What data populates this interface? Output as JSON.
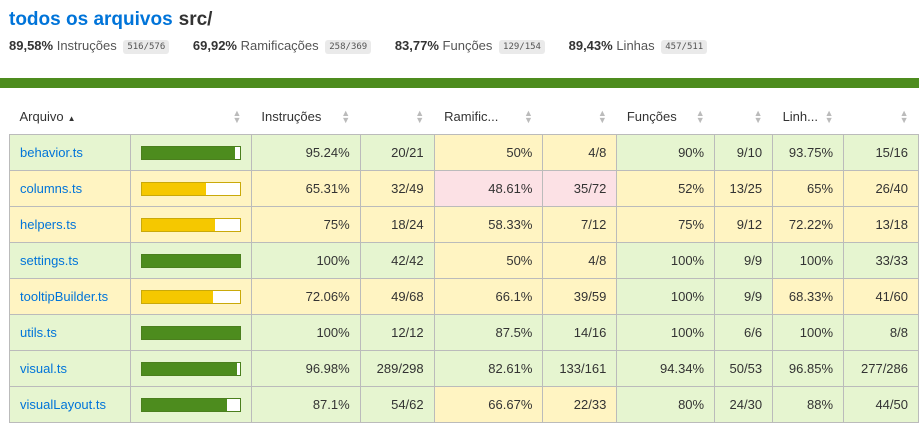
{
  "header": {
    "root_link": "todos os arquivos",
    "dir": "src/"
  },
  "summary": [
    {
      "pct": "89,58%",
      "label": "Instruções",
      "frac": "516/576"
    },
    {
      "pct": "69,92%",
      "label": "Ramificações",
      "frac": "258/369"
    },
    {
      "pct": "83,77%",
      "label": "Funções",
      "frac": "129/154"
    },
    {
      "pct": "89,43%",
      "label": "Linhas",
      "frac": "457/511"
    }
  ],
  "colors": {
    "high": "#e6f5d0",
    "medium": "#fff4c2",
    "low": "#fce1e5",
    "bar_high": "#4d8c1e",
    "bar_medium": "#f5c800",
    "status_line": "#4d8c1e",
    "link": "#0074D9"
  },
  "table": {
    "headers": {
      "file": "Arquivo",
      "statements": "Instruções",
      "branches": "Ramific...",
      "functions": "Funções",
      "lines": "Linh..."
    },
    "rows": [
      {
        "file": "behavior.ts",
        "bar": 0.9524,
        "level": "high",
        "st_pct": "95.24%",
        "st_frac": "20/21",
        "st_lvl": "high",
        "br_pct": "50%",
        "br_frac": "4/8",
        "br_lvl": "med",
        "fn_pct": "90%",
        "fn_frac": "9/10",
        "fn_lvl": "high",
        "ln_pct": "93.75%",
        "ln_frac": "15/16",
        "ln_lvl": "high"
      },
      {
        "file": "columns.ts",
        "bar": 0.6531,
        "level": "med",
        "st_pct": "65.31%",
        "st_frac": "32/49",
        "st_lvl": "med",
        "br_pct": "48.61%",
        "br_frac": "35/72",
        "br_lvl": "low",
        "fn_pct": "52%",
        "fn_frac": "13/25",
        "fn_lvl": "med",
        "ln_pct": "65%",
        "ln_frac": "26/40",
        "ln_lvl": "med"
      },
      {
        "file": "helpers.ts",
        "bar": 0.75,
        "level": "med",
        "st_pct": "75%",
        "st_frac": "18/24",
        "st_lvl": "med",
        "br_pct": "58.33%",
        "br_frac": "7/12",
        "br_lvl": "med",
        "fn_pct": "75%",
        "fn_frac": "9/12",
        "fn_lvl": "med",
        "ln_pct": "72.22%",
        "ln_frac": "13/18",
        "ln_lvl": "med"
      },
      {
        "file": "settings.ts",
        "bar": 1.0,
        "level": "high",
        "st_pct": "100%",
        "st_frac": "42/42",
        "st_lvl": "high",
        "br_pct": "50%",
        "br_frac": "4/8",
        "br_lvl": "med",
        "fn_pct": "100%",
        "fn_frac": "9/9",
        "fn_lvl": "high",
        "ln_pct": "100%",
        "ln_frac": "33/33",
        "ln_lvl": "high"
      },
      {
        "file": "tooltipBuilder.ts",
        "bar": 0.7206,
        "level": "med",
        "st_pct": "72.06%",
        "st_frac": "49/68",
        "st_lvl": "med",
        "br_pct": "66.1%",
        "br_frac": "39/59",
        "br_lvl": "med",
        "fn_pct": "100%",
        "fn_frac": "9/9",
        "fn_lvl": "high",
        "ln_pct": "68.33%",
        "ln_frac": "41/60",
        "ln_lvl": "med"
      },
      {
        "file": "utils.ts",
        "bar": 1.0,
        "level": "high",
        "st_pct": "100%",
        "st_frac": "12/12",
        "st_lvl": "high",
        "br_pct": "87.5%",
        "br_frac": "14/16",
        "br_lvl": "high",
        "fn_pct": "100%",
        "fn_frac": "6/6",
        "fn_lvl": "high",
        "ln_pct": "100%",
        "ln_frac": "8/8",
        "ln_lvl": "high"
      },
      {
        "file": "visual.ts",
        "bar": 0.9698,
        "level": "high",
        "st_pct": "96.98%",
        "st_frac": "289/298",
        "st_lvl": "high",
        "br_pct": "82.61%",
        "br_frac": "133/161",
        "br_lvl": "high",
        "fn_pct": "94.34%",
        "fn_frac": "50/53",
        "fn_lvl": "high",
        "ln_pct": "96.85%",
        "ln_frac": "277/286",
        "ln_lvl": "high"
      },
      {
        "file": "visualLayout.ts",
        "bar": 0.871,
        "level": "high",
        "st_pct": "87.1%",
        "st_frac": "54/62",
        "st_lvl": "high",
        "br_pct": "66.67%",
        "br_frac": "22/33",
        "br_lvl": "med",
        "fn_pct": "80%",
        "fn_frac": "24/30",
        "fn_lvl": "high",
        "ln_pct": "88%",
        "ln_frac": "44/50",
        "ln_lvl": "high"
      }
    ]
  }
}
